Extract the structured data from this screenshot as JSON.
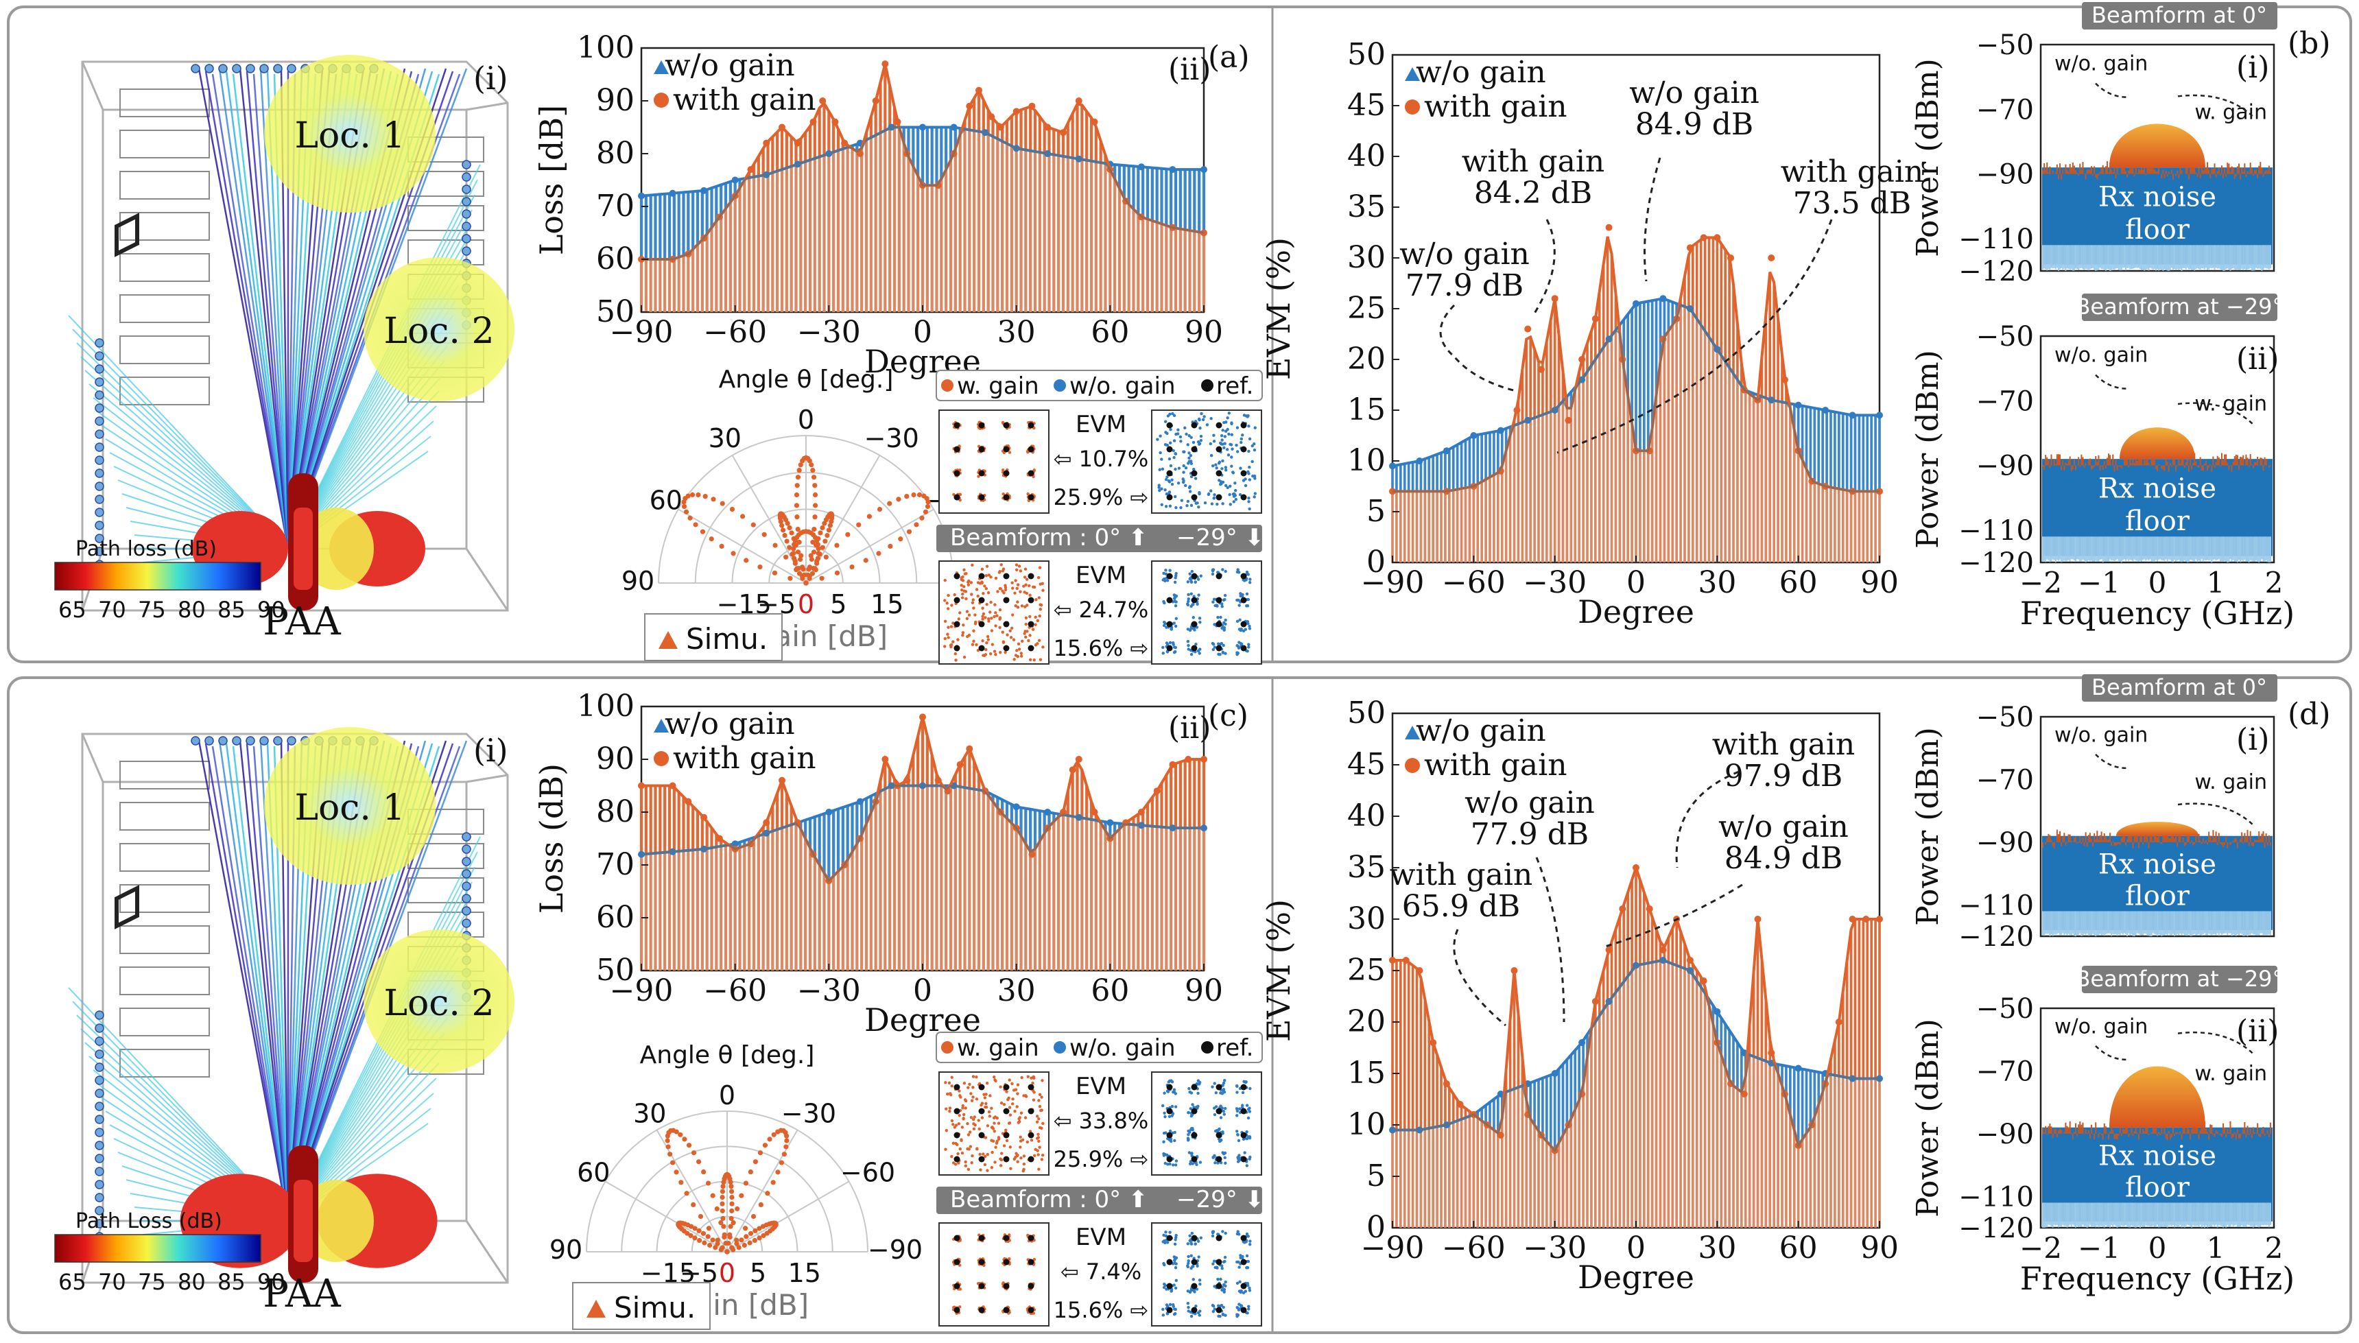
{
  "colors": {
    "blue": "#2f7cc4",
    "orange": "#e0622a",
    "gray": "#6d6d6d",
    "panel_border": "#9a9a9a",
    "box_border": "#555555"
  },
  "scene": {
    "loc1": "Loc. 1",
    "loc2": "Loc. 2",
    "paa": "PAA",
    "tag": "(i)",
    "cbar_title_top": "Path loss (dB)",
    "cbar_title_bottom": "Path Loss (dB)",
    "cbar_ticks": [
      "65",
      "70",
      "75",
      "80",
      "85",
      "90"
    ]
  },
  "constellation": {
    "legend": [
      "w. gain",
      "w/o. gain",
      "ref."
    ],
    "beam_label": "Beamform : 0°",
    "beam_label2": "−29°",
    "evm_title": "EVM",
    "top_evm": [
      "10.7%",
      "25.9%",
      "24.7%",
      "15.6%"
    ],
    "bottom_evm": [
      "33.8%",
      "25.9%",
      "7.4%",
      "15.6%"
    ]
  },
  "polar": {
    "title": "Angle θ [deg.]",
    "angle_labels": [
      "0",
      "30",
      "−30",
      "60",
      "−60",
      "90",
      "−90"
    ],
    "gain_ticks": [
      "−15",
      "−5",
      "0",
      "5",
      "15"
    ],
    "gain_label": "Gain [dB]",
    "simu": "Simu."
  },
  "spectrum": {
    "ylabel": "Power (dBm)",
    "xlabel": "Frequency (GHz)",
    "yticks": [
      "−50",
      "−70",
      "−90",
      "−110",
      "−120"
    ],
    "xticks": [
      "−2",
      "−1",
      "0",
      "1",
      "2"
    ],
    "beam0": "Beamform at 0°",
    "beam29": "Beamform at −29°",
    "wo_gain": "w/o. gain",
    "w_gain": "w. gain",
    "noise_floor": [
      "Rx noise",
      "floor"
    ],
    "tag_i": "(i)",
    "tag_ii": "(ii)",
    "panel_b": "(b)",
    "panel_d": "(d)"
  },
  "chart_data": [
    {
      "type": "bar",
      "id": "a",
      "panel_tag": "(a)",
      "subtag": "(ii)",
      "xlabel": "Degree",
      "ylabel": "Loss [dB]",
      "xlim": [
        -90,
        90
      ],
      "ylim": [
        50,
        100
      ],
      "xticks": [
        -90,
        -60,
        -30,
        0,
        30,
        60,
        90
      ],
      "yticks": [
        50,
        60,
        70,
        80,
        90,
        100
      ],
      "legend": [
        "w/o gain",
        "with gain"
      ],
      "series": [
        {
          "name": "w/o gain",
          "x": [
            -90,
            -80,
            -70,
            -60,
            -50,
            -40,
            -30,
            -20,
            -10,
            0,
            10,
            20,
            30,
            40,
            50,
            60,
            70,
            80,
            90
          ],
          "values": [
            72,
            72.5,
            73,
            75,
            76,
            78,
            80,
            82,
            85,
            85,
            85,
            84,
            81,
            80,
            79,
            78,
            77.5,
            77,
            77
          ]
        },
        {
          "name": "with gain",
          "x": [
            -90,
            -80,
            -75,
            -70,
            -65,
            -60,
            -55,
            -50,
            -45,
            -40,
            -35,
            -32,
            -28,
            -25,
            -20,
            -15,
            -12,
            -8,
            -5,
            0,
            5,
            10,
            15,
            18,
            22,
            25,
            30,
            35,
            40,
            45,
            50,
            55,
            60,
            65,
            70,
            80,
            90
          ],
          "values": [
            60,
            60,
            61,
            64,
            68,
            72,
            77,
            82,
            85,
            82,
            86,
            90,
            86,
            82,
            80,
            90,
            97,
            86,
            80,
            74,
            74,
            80,
            89,
            92,
            87,
            85,
            88,
            89,
            85,
            84,
            90,
            86,
            77,
            71,
            68,
            66,
            65
          ]
        }
      ]
    },
    {
      "type": "bar",
      "id": "b",
      "subtag": "",
      "xlabel": "Degree",
      "ylabel": "EVM (%)",
      "xlim": [
        -90,
        90
      ],
      "ylim": [
        0,
        50
      ],
      "xticks": [
        -90,
        -60,
        -30,
        0,
        30,
        60,
        90
      ],
      "yticks": [
        0,
        5,
        10,
        15,
        20,
        25,
        30,
        35,
        40,
        45,
        50
      ],
      "legend": [
        "w/o gain",
        "with gain"
      ],
      "annotations": [
        {
          "lines": [
            "w/o gain",
            "77.9 dB"
          ]
        },
        {
          "lines": [
            "with gain",
            "84.2 dB"
          ]
        },
        {
          "lines": [
            "w/o gain",
            "84.9 dB"
          ]
        },
        {
          "lines": [
            "with gain",
            "73.5 dB"
          ]
        }
      ],
      "series": [
        {
          "name": "w/o gain",
          "x": [
            -90,
            -80,
            -70,
            -60,
            -50,
            -40,
            -30,
            -20,
            -10,
            0,
            10,
            20,
            30,
            40,
            50,
            60,
            70,
            80,
            90
          ],
          "values": [
            9.5,
            10,
            11,
            12.5,
            13,
            14,
            15,
            18,
            22,
            25.5,
            26,
            25,
            21,
            17,
            16,
            15.5,
            15,
            14.5,
            14.5
          ]
        },
        {
          "name": "with gain",
          "x": [
            -90,
            -70,
            -60,
            -50,
            -44,
            -40,
            -35,
            -30,
            -25,
            -20,
            -15,
            -10,
            -5,
            0,
            5,
            10,
            15,
            20,
            25,
            30,
            35,
            40,
            45,
            50,
            55,
            60,
            65,
            70,
            80,
            90
          ],
          "values": [
            7,
            7,
            7.5,
            9,
            15,
            23,
            19,
            26,
            14,
            20,
            24,
            33,
            20,
            11,
            11,
            22,
            24,
            31,
            32,
            32,
            30,
            17,
            16,
            30,
            18,
            11,
            8,
            7.5,
            7,
            7
          ]
        }
      ]
    },
    {
      "type": "bar",
      "id": "c",
      "panel_tag": "(c)",
      "subtag": "(ii)",
      "xlabel": "Degree",
      "ylabel": "Loss (dB)",
      "xlim": [
        -90,
        90
      ],
      "ylim": [
        50,
        100
      ],
      "xticks": [
        -90,
        -60,
        -30,
        0,
        30,
        60,
        90
      ],
      "yticks": [
        50,
        60,
        70,
        80,
        90,
        100
      ],
      "legend": [
        "w/o gain",
        "with gain"
      ],
      "series": [
        {
          "name": "w/o gain",
          "x": [
            -90,
            -80,
            -70,
            -60,
            -50,
            -40,
            -30,
            -20,
            -10,
            0,
            10,
            20,
            30,
            40,
            50,
            60,
            70,
            80,
            90
          ],
          "values": [
            72,
            72.5,
            73,
            74,
            76,
            78,
            80,
            82,
            85,
            85,
            85,
            84,
            81,
            80,
            79,
            78,
            77.5,
            77,
            77
          ]
        },
        {
          "name": "with gain",
          "x": [
            -90,
            -80,
            -75,
            -70,
            -65,
            -60,
            -55,
            -50,
            -45,
            -40,
            -35,
            -30,
            -25,
            -20,
            -15,
            -12,
            -8,
            -5,
            0,
            5,
            8,
            12,
            15,
            20,
            25,
            30,
            35,
            40,
            45,
            48,
            50,
            55,
            60,
            65,
            70,
            75,
            80,
            85,
            90
          ],
          "values": [
            85,
            85,
            82,
            79,
            75,
            73,
            74,
            78,
            86,
            78,
            72,
            67,
            70,
            75,
            82,
            90,
            85,
            86,
            98,
            86,
            84,
            89,
            92,
            84,
            80,
            77,
            72,
            77,
            80,
            88,
            90,
            80,
            75,
            78,
            80,
            84,
            89,
            90,
            90
          ]
        }
      ]
    },
    {
      "type": "bar",
      "id": "d",
      "subtag": "",
      "xlabel": "Degree",
      "ylabel": "EVM (%)",
      "xlim": [
        -90,
        90
      ],
      "ylim": [
        0,
        50
      ],
      "xticks": [
        -90,
        -60,
        -30,
        0,
        30,
        60,
        90
      ],
      "yticks": [
        0,
        5,
        10,
        15,
        20,
        25,
        30,
        35,
        40,
        45,
        50
      ],
      "legend": [
        "w/o gain",
        "with gain"
      ],
      "annotations": [
        {
          "lines": [
            "with gain",
            "65.9 dB"
          ]
        },
        {
          "lines": [
            "w/o gain",
            "77.9 dB"
          ]
        },
        {
          "lines": [
            "with gain",
            "97.9 dB"
          ]
        },
        {
          "lines": [
            "w/o gain",
            "84.9 dB"
          ]
        }
      ],
      "series": [
        {
          "name": "w/o gain",
          "x": [
            -90,
            -80,
            -70,
            -60,
            -50,
            -40,
            -30,
            -20,
            -10,
            0,
            10,
            20,
            30,
            40,
            50,
            60,
            70,
            80,
            90
          ],
          "values": [
            9.5,
            9.5,
            10,
            11,
            13,
            14,
            15,
            18,
            22,
            25.5,
            26,
            25,
            21,
            17,
            16,
            15.5,
            15,
            14.5,
            14.5
          ]
        },
        {
          "name": "with gain",
          "x": [
            -90,
            -85,
            -80,
            -75,
            -70,
            -65,
            -60,
            -55,
            -50,
            -45,
            -40,
            -35,
            -30,
            -25,
            -20,
            -15,
            -10,
            -5,
            0,
            5,
            10,
            15,
            20,
            25,
            30,
            35,
            40,
            45,
            50,
            55,
            60,
            65,
            70,
            75,
            80,
            85,
            90
          ],
          "values": [
            26,
            26,
            25,
            18,
            14,
            12,
            11,
            10,
            9,
            25,
            11,
            9,
            7.5,
            10,
            13,
            22,
            27,
            31,
            35,
            31,
            27,
            30,
            26,
            24,
            18,
            14,
            13,
            30,
            17,
            13,
            8,
            10,
            14,
            20,
            30,
            30,
            30
          ]
        }
      ]
    }
  ]
}
